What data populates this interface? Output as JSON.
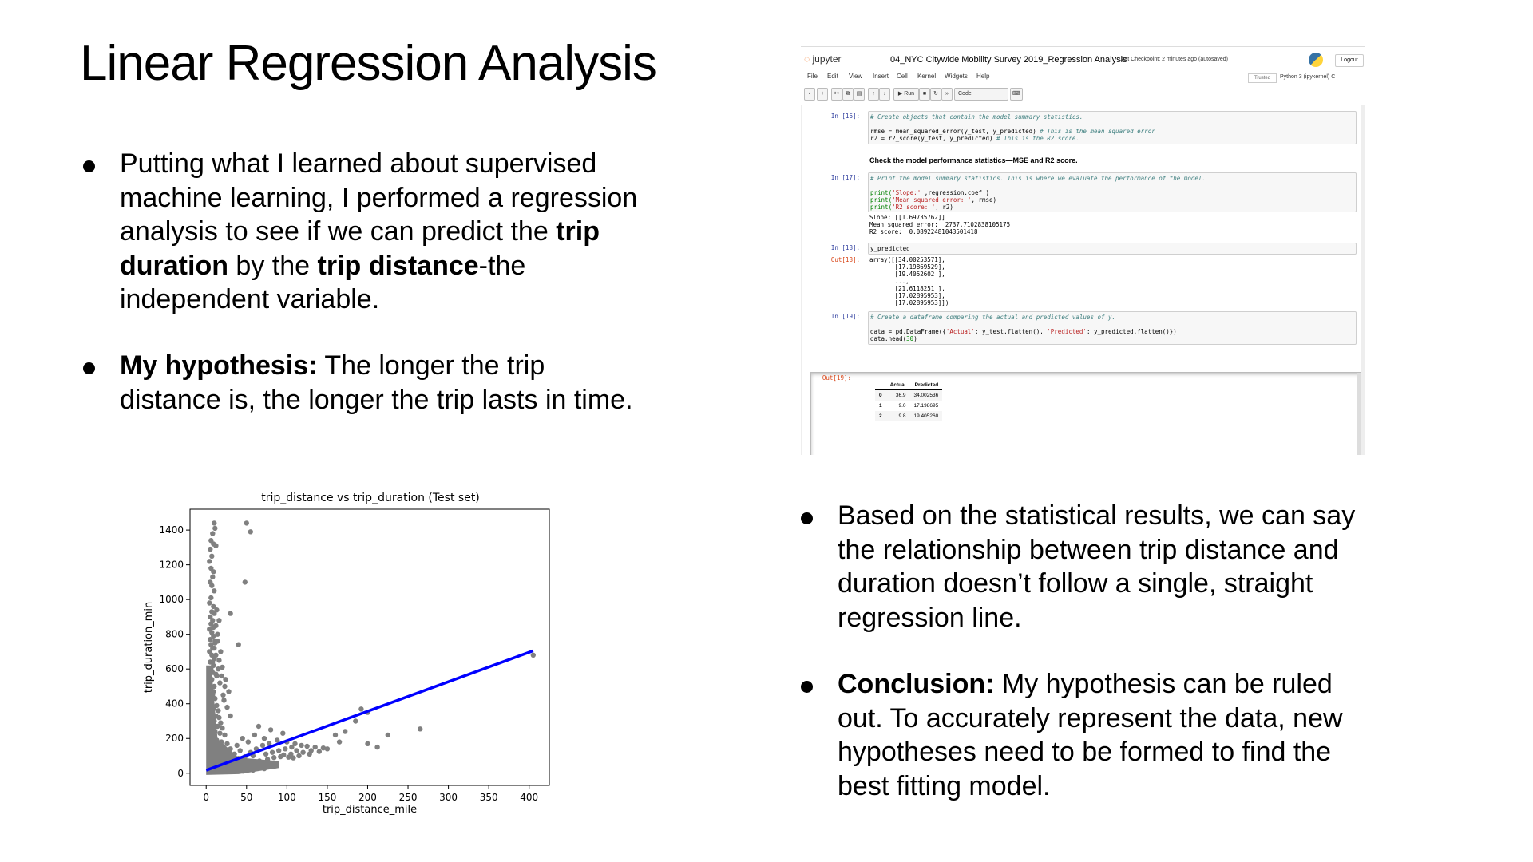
{
  "slide": {
    "title": "Linear Regression Analysis",
    "bullet1": {
      "lines": [
        [
          "Putting what I learned about supervised"
        ],
        [
          "machine learning, I performed a regression"
        ],
        [
          "analysis to see if we can predict the ",
          "trip"
        ],
        [
          "duration",
          " by the ",
          "trip distance",
          "-the"
        ],
        [
          "independent variable."
        ]
      ]
    },
    "bullet2": {
      "bold": "My hypothesis:",
      "line1_rest": " The longer the trip",
      "line2": "distance is, the longer the trip lasts in time."
    },
    "bullet3": {
      "lines": [
        "Based on the statistical results, we can say",
        "the relationship between trip distance and",
        "duration doesn’t follow a single, straight",
        "regression line."
      ]
    },
    "bullet4": {
      "bold": "Conclusion:",
      "line1_rest": " My hypothesis can be ruled",
      "line2": "out. To accurately represent the data, new",
      "line3": "hypotheses need to be formed to find the",
      "line4": "best fitting model."
    }
  },
  "jupyter": {
    "logo": "jupyter",
    "notebook_title": "04_NYC Citywide Mobility Survey 2019_Regression Analysis",
    "checkpoint": "Last Checkpoint: 2 minutes ago  (autosaved)",
    "logout": "Logout",
    "menu": [
      "File",
      "Edit",
      "View",
      "Insert",
      "Cell",
      "Kernel",
      "Widgets",
      "Help"
    ],
    "trusted": "Trusted",
    "kernel": "Python 3 (ipykernel)  C",
    "toolbar": {
      "run": "▶ Run",
      "celltype": "Code"
    },
    "cells": {
      "c16_prompt": "In [16]:",
      "c16_comment": "# Create objects that contain the model summary statistics.",
      "c16_line1_code": "rmse = mean_squared_error(y_test, y_predicted) ",
      "c16_line1_comment": "# This is the mean squared error",
      "c16_line2_code": "r2 = r2_score(y_test, y_predicted) ",
      "c16_line2_comment": "# This is the R2 score.",
      "md_text": "Check the model performance statistics—MSE and R2 score.",
      "c17_prompt": "In [17]:",
      "c17_comment": "# Print the model summary statistics. This is where we evaluate the performance of the model.",
      "c17_l1": [
        "print(",
        "'Slope:'",
        " ,regression.coef_)"
      ],
      "c17_l2": [
        "print(",
        "'Mean squared error: '",
        ", rmse)"
      ],
      "c17_l3": [
        "print(",
        "'R2 score: '",
        ", r2)"
      ],
      "c17_out": [
        "Slope: [[1.69735762]]",
        "Mean squared error:  2737.7102838105175",
        "R2 score:  0.08922481043501418"
      ],
      "c18_prompt": "In [18]:",
      "c18_code": "y_predicted",
      "c18_out_prompt": "Out[18]:",
      "c18_out": [
        "array([[34.00253571],",
        "       [17.19869529],",
        "       [19.4052602 ],",
        "       ...,",
        "       [21.6118251 ],",
        "       [17.02895953],",
        "       [17.02895953]])"
      ],
      "c19_prompt": "In [19]:",
      "c19_comment": "# Create a dataframe comparing the actual and predicted values of y.",
      "c19_l1": [
        "data = pd.DataFrame({",
        "'Actual'",
        ": y_test.flatten(), ",
        "'Predicted'",
        ": y_predicted.flatten()})"
      ],
      "c19_l2": [
        "data.head(",
        "30",
        ")"
      ],
      "c19_out_prompt": "Out[19]:",
      "table": {
        "headers": [
          "",
          "Actual",
          "Predicted"
        ],
        "rows": [
          [
            "0",
            "36.9",
            "34.002536"
          ],
          [
            "1",
            "9.0",
            "17.198695"
          ],
          [
            "2",
            "9.8",
            "19.405260"
          ]
        ]
      }
    }
  },
  "chart_data": {
    "type": "scatter",
    "title": "trip_distance vs trip_duration (Test set)",
    "xlabel": "trip_distance_mile",
    "ylabel": "trip_duration_min",
    "xlim": [
      -20,
      425
    ],
    "ylim": [
      -70,
      1520
    ],
    "xticks": [
      0,
      50,
      100,
      150,
      200,
      250,
      300,
      350,
      400
    ],
    "yticks": [
      0,
      200,
      400,
      600,
      800,
      1000,
      1200,
      1400
    ],
    "point_color": "#808080",
    "line_color": "#0000ff",
    "regression_line": {
      "x": [
        0,
        405
      ],
      "y": [
        17,
        705
      ]
    },
    "points": [
      [
        10,
        1440
      ],
      [
        11,
        1410
      ],
      [
        8,
        1380
      ],
      [
        6,
        1340
      ],
      [
        9,
        1320
      ],
      [
        12,
        1310
      ],
      [
        5,
        1290
      ],
      [
        7,
        1250
      ],
      [
        4,
        1220
      ],
      [
        6,
        1180
      ],
      [
        9,
        1160
      ],
      [
        8,
        1130
      ],
      [
        5,
        1100
      ],
      [
        7,
        1080
      ],
      [
        10,
        1050
      ],
      [
        6,
        1010
      ],
      [
        4,
        980
      ],
      [
        9,
        960
      ],
      [
        7,
        930
      ],
      [
        5,
        900
      ],
      [
        8,
        880
      ],
      [
        6,
        860
      ],
      [
        12,
        850
      ],
      [
        4,
        830
      ],
      [
        7,
        810
      ],
      [
        9,
        790
      ],
      [
        5,
        770
      ],
      [
        11,
        750
      ],
      [
        6,
        740
      ],
      [
        8,
        720
      ],
      [
        4,
        700
      ],
      [
        7,
        680
      ],
      [
        10,
        660
      ],
      [
        5,
        640
      ],
      [
        9,
        620
      ],
      [
        6,
        600
      ],
      [
        8,
        580
      ],
      [
        12,
        570
      ],
      [
        4,
        560
      ],
      [
        7,
        540
      ],
      [
        5,
        520
      ],
      [
        10,
        500
      ],
      [
        6,
        480
      ],
      [
        9,
        470
      ],
      [
        8,
        450
      ],
      [
        11,
        430
      ],
      [
        4,
        420
      ],
      [
        7,
        400
      ],
      [
        13,
        390
      ],
      [
        5,
        380
      ],
      [
        9,
        370
      ],
      [
        15,
        360
      ],
      [
        6,
        350
      ],
      [
        8,
        340
      ],
      [
        12,
        330
      ],
      [
        16,
        320
      ],
      [
        4,
        310
      ],
      [
        10,
        300
      ],
      [
        18,
        290
      ],
      [
        7,
        280
      ],
      [
        14,
        270
      ],
      [
        20,
        260
      ],
      [
        5,
        250
      ],
      [
        11,
        240
      ],
      [
        17,
        230
      ],
      [
        23,
        220
      ],
      [
        6,
        210
      ],
      [
        9,
        200
      ],
      [
        13,
        190
      ],
      [
        19,
        180
      ],
      [
        26,
        170
      ],
      [
        8,
        160
      ],
      [
        15,
        150
      ],
      [
        22,
        145
      ],
      [
        30,
        140
      ],
      [
        4,
        130
      ],
      [
        11,
        125
      ],
      [
        18,
        120
      ],
      [
        25,
        115
      ],
      [
        35,
        110
      ],
      [
        6,
        100
      ],
      [
        13,
        95
      ],
      [
        21,
        92
      ],
      [
        28,
        88
      ],
      [
        40,
        85
      ],
      [
        8,
        80
      ],
      [
        16,
        76
      ],
      [
        24,
        72
      ],
      [
        33,
        70
      ],
      [
        45,
        68
      ],
      [
        5,
        60
      ],
      [
        12,
        56
      ],
      [
        20,
        54
      ],
      [
        30,
        52
      ],
      [
        38,
        50
      ],
      [
        52,
        55
      ],
      [
        9,
        45
      ],
      [
        17,
        42
      ],
      [
        27,
        40
      ],
      [
        36,
        38
      ],
      [
        48,
        40
      ],
      [
        60,
        48
      ],
      [
        7,
        30
      ],
      [
        14,
        28
      ],
      [
        22,
        26
      ],
      [
        32,
        25
      ],
      [
        44,
        28
      ],
      [
        56,
        35
      ],
      [
        68,
        45
      ],
      [
        4,
        20
      ],
      [
        10,
        18
      ],
      [
        18,
        17
      ],
      [
        26,
        16
      ],
      [
        36,
        18
      ],
      [
        50,
        22
      ],
      [
        64,
        30
      ],
      [
        78,
        40
      ],
      [
        6,
        10
      ],
      [
        14,
        10
      ],
      [
        24,
        9
      ],
      [
        34,
        10
      ],
      [
        46,
        12
      ],
      [
        58,
        18
      ],
      [
        72,
        26
      ],
      [
        86,
        42
      ],
      [
        20,
        610
      ],
      [
        24,
        540
      ],
      [
        28,
        470
      ],
      [
        16,
        650
      ],
      [
        22,
        420
      ],
      [
        18,
        700
      ],
      [
        14,
        760
      ],
      [
        26,
        380
      ],
      [
        30,
        330
      ],
      [
        19,
        560
      ],
      [
        23,
        500
      ],
      [
        21,
        450
      ],
      [
        10,
        720
      ],
      [
        12,
        680
      ],
      [
        8,
        640
      ],
      [
        15,
        600
      ],
      [
        13,
        560
      ],
      [
        17,
        520
      ],
      [
        11,
        760
      ],
      [
        14,
        800
      ],
      [
        9,
        840
      ],
      [
        16,
        880
      ],
      [
        10,
        920
      ],
      [
        13,
        940
      ],
      [
        50,
        1440
      ],
      [
        55,
        1390
      ],
      [
        48,
        1100
      ],
      [
        30,
        920
      ],
      [
        40,
        740
      ],
      [
        65,
        270
      ],
      [
        80,
        250
      ],
      [
        95,
        230
      ],
      [
        60,
        220
      ],
      [
        72,
        200
      ],
      [
        88,
        190
      ],
      [
        100,
        180
      ],
      [
        110,
        170
      ],
      [
        118,
        160
      ],
      [
        125,
        155
      ],
      [
        135,
        150
      ],
      [
        145,
        145
      ],
      [
        112,
        130
      ],
      [
        120,
        120
      ],
      [
        130,
        130
      ],
      [
        140,
        125
      ],
      [
        150,
        140
      ],
      [
        105,
        110
      ],
      [
        96,
        105
      ],
      [
        115,
        100
      ],
      [
        128,
        110
      ],
      [
        84,
        90
      ],
      [
        76,
        80
      ],
      [
        66,
        70
      ],
      [
        58,
        60
      ],
      [
        92,
        95
      ],
      [
        102,
        92
      ],
      [
        108,
        88
      ],
      [
        160,
        220
      ],
      [
        165,
        180
      ],
      [
        172,
        240
      ],
      [
        185,
        300
      ],
      [
        192,
        370
      ],
      [
        200,
        350
      ],
      [
        200,
        170
      ],
      [
        212,
        150
      ],
      [
        225,
        220
      ],
      [
        265,
        255
      ],
      [
        405,
        680
      ],
      [
        45,
        200
      ],
      [
        52,
        180
      ],
      [
        38,
        160
      ],
      [
        42,
        130
      ],
      [
        55,
        120
      ],
      [
        62,
        140
      ],
      [
        70,
        160
      ],
      [
        78,
        170
      ],
      [
        48,
        95
      ],
      [
        33,
        85
      ],
      [
        26,
        70
      ],
      [
        58,
        100
      ],
      [
        74,
        110
      ],
      [
        82,
        120
      ],
      [
        90,
        130
      ],
      [
        98,
        140
      ],
      [
        106,
        150
      ]
    ]
  }
}
